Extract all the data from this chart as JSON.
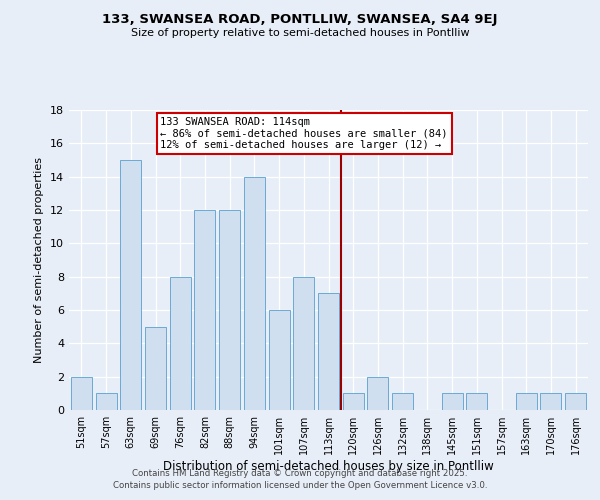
{
  "title1": "133, SWANSEA ROAD, PONTLLIW, SWANSEA, SA4 9EJ",
  "title2": "Size of property relative to semi-detached houses in Pontlliw",
  "xlabel": "Distribution of semi-detached houses by size in Pontlliw",
  "ylabel": "Number of semi-detached properties",
  "categories": [
    "51sqm",
    "57sqm",
    "63sqm",
    "69sqm",
    "76sqm",
    "82sqm",
    "88sqm",
    "94sqm",
    "101sqm",
    "107sqm",
    "113sqm",
    "120sqm",
    "126sqm",
    "132sqm",
    "138sqm",
    "145sqm",
    "151sqm",
    "157sqm",
    "163sqm",
    "170sqm",
    "176sqm"
  ],
  "values": [
    2,
    1,
    15,
    5,
    8,
    12,
    12,
    14,
    6,
    8,
    7,
    1,
    2,
    1,
    0,
    1,
    1,
    0,
    1,
    1,
    1
  ],
  "bar_color": "#cfdff0",
  "bar_edge_color": "#6aaad4",
  "vline_x": 10.5,
  "vline_color": "#990000",
  "annotation_line1": "133 SWANSEA ROAD: 114sqm",
  "annotation_line2": "← 86% of semi-detached houses are smaller (84)",
  "annotation_line3": "12% of semi-detached houses are larger (12) →",
  "annotation_box_color": "#ffffff",
  "annotation_box_edge": "#cc0000",
  "ylim": [
    0,
    18
  ],
  "yticks": [
    0,
    2,
    4,
    6,
    8,
    10,
    12,
    14,
    16,
    18
  ],
  "background_color": "#e8eef8",
  "grid_color": "#ffffff",
  "footer1": "Contains HM Land Registry data © Crown copyright and database right 2025.",
  "footer2": "Contains public sector information licensed under the Open Government Licence v3.0."
}
